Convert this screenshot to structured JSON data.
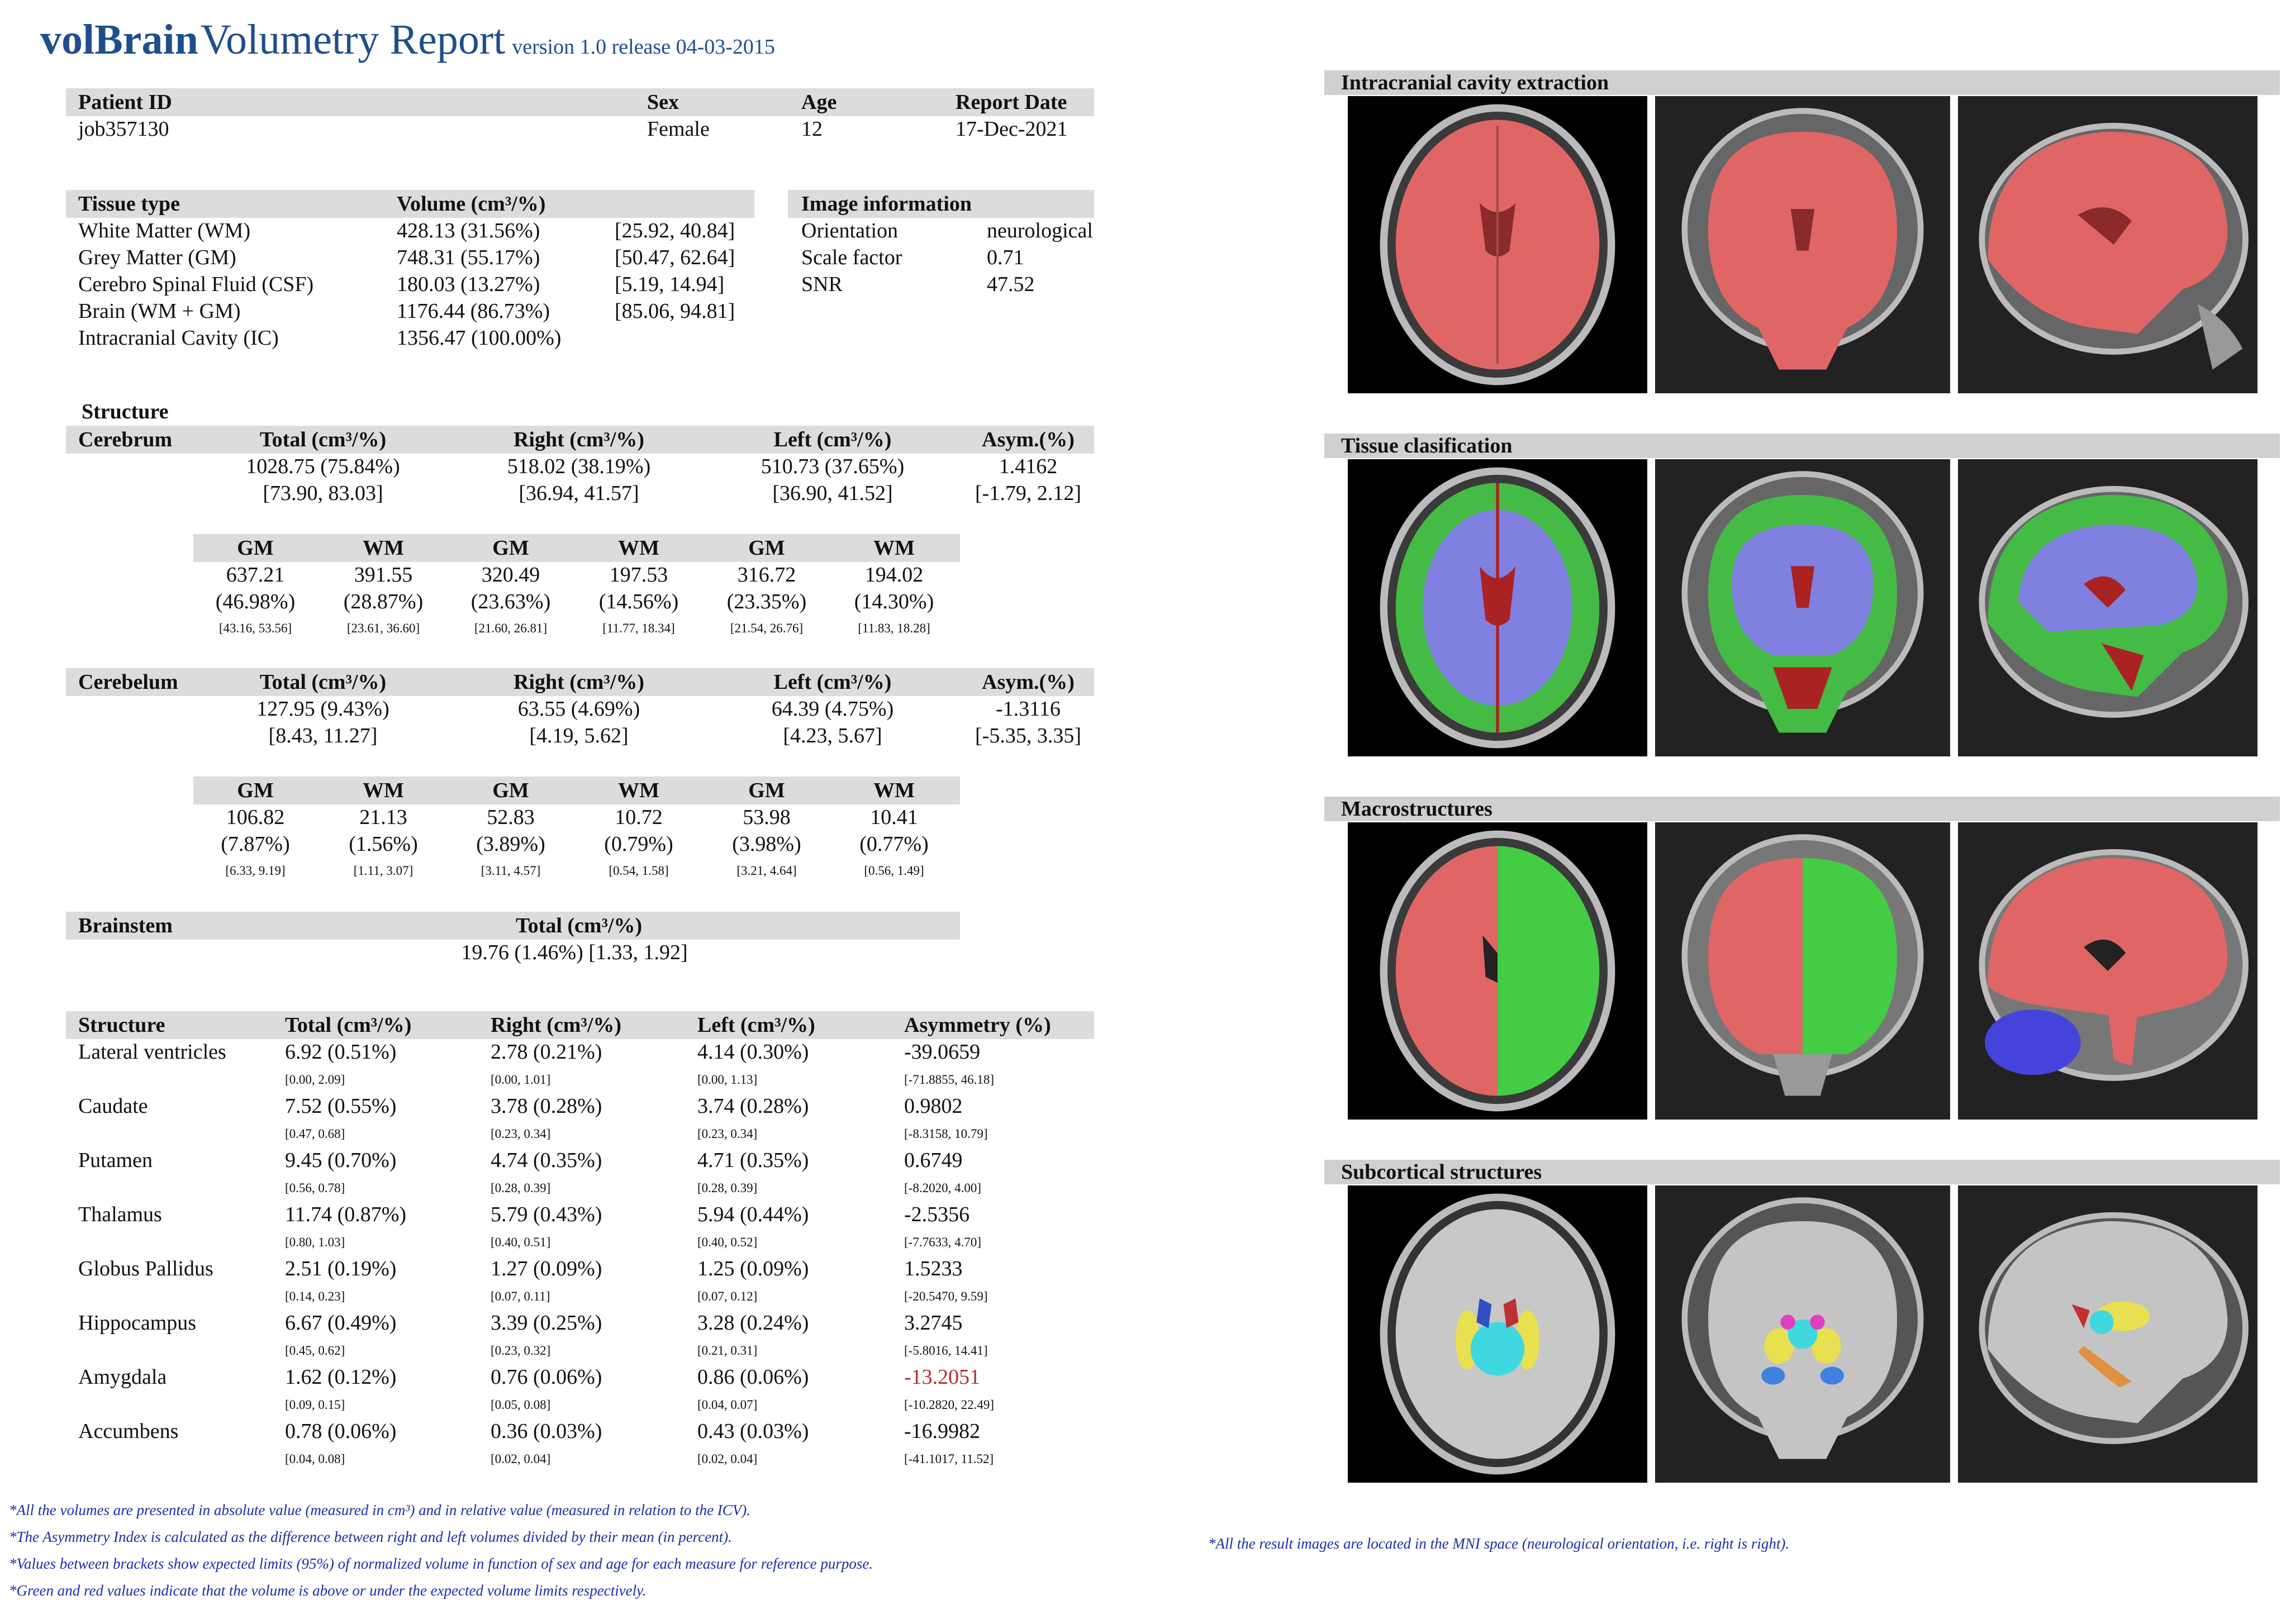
{
  "title": {
    "brand": "volBrain",
    "rest": "Volumetry Report",
    "version": "version 1.0 release 04-03-2015"
  },
  "patient": {
    "headers": [
      "Patient ID",
      "Sex",
      "Age",
      "Report Date"
    ],
    "values": [
      "job357130",
      "Female",
      "12",
      "17-Dec-2021"
    ]
  },
  "tissue": {
    "header_type": "Tissue type",
    "header_volume": "Volume (cm³/%)",
    "rows": [
      {
        "name": "White Matter (WM)",
        "value": "428.13 (31.56%)",
        "range": "[25.92, 40.84]"
      },
      {
        "name": "Grey Matter (GM)",
        "value": "748.31 (55.17%)",
        "range": "[50.47, 62.64]"
      },
      {
        "name": "Cerebro Spinal Fluid (CSF)",
        "value": "180.03 (13.27%)",
        "range": "[5.19, 14.94]"
      },
      {
        "name": "Brain (WM + GM)",
        "value": "1176.44 (86.73%)",
        "range": "[85.06, 94.81]"
      },
      {
        "name": "Intracranial Cavity (IC)",
        "value": "1356.47 (100.00%)",
        "range": ""
      }
    ]
  },
  "image_info": {
    "header": "Image information",
    "rows": [
      {
        "label": "Orientation",
        "value": "neurological"
      },
      {
        "label": "Scale factor",
        "value": "0.71"
      },
      {
        "label": "SNR",
        "value": "47.52"
      }
    ]
  },
  "structure_label": "Structure",
  "col_headers": {
    "total": "Total (cm³/%)",
    "right": "Right (cm³/%)",
    "left": "Left (cm³/%)",
    "asym": "Asym.(%)"
  },
  "cerebrum": {
    "name": "Cerebrum",
    "total": "1028.75 (75.84%)",
    "total_range": "[73.90, 83.03]",
    "right": "518.02 (38.19%)",
    "right_range": "[36.94, 41.57]",
    "left": "510.73 (37.65%)",
    "left_range": "[36.90, 41.52]",
    "asym": "1.4162",
    "asym_range": "[-1.79, 2.12]",
    "sub": [
      {
        "h": "GM",
        "v": "637.21",
        "p": "(46.98%)",
        "r": "[43.16, 53.56]"
      },
      {
        "h": "WM",
        "v": "391.55",
        "p": "(28.87%)",
        "r": "[23.61, 36.60]"
      },
      {
        "h": "GM",
        "v": "320.49",
        "p": "(23.63%)",
        "r": "[21.60, 26.81]"
      },
      {
        "h": "WM",
        "v": "197.53",
        "p": "(14.56%)",
        "r": "[11.77, 18.34]"
      },
      {
        "h": "GM",
        "v": "316.72",
        "p": "(23.35%)",
        "r": "[21.54, 26.76]"
      },
      {
        "h": "WM",
        "v": "194.02",
        "p": "(14.30%)",
        "r": "[11.83, 18.28]"
      }
    ]
  },
  "cerebelum": {
    "name": "Cerebelum",
    "total": "127.95 (9.43%)",
    "total_range": "[8.43, 11.27]",
    "right": "63.55 (4.69%)",
    "right_range": "[4.19, 5.62]",
    "left": "64.39 (4.75%)",
    "left_range": "[4.23, 5.67]",
    "asym": "-1.3116",
    "asym_range": "[-5.35, 3.35]",
    "sub": [
      {
        "h": "GM",
        "v": "106.82",
        "p": "(7.87%)",
        "r": "[6.33, 9.19]"
      },
      {
        "h": "WM",
        "v": "21.13",
        "p": "(1.56%)",
        "r": "[1.11, 3.07]"
      },
      {
        "h": "GM",
        "v": "52.83",
        "p": "(3.89%)",
        "r": "[3.11, 4.57]"
      },
      {
        "h": "WM",
        "v": "10.72",
        "p": "(0.79%)",
        "r": "[0.54, 1.58]"
      },
      {
        "h": "GM",
        "v": "53.98",
        "p": "(3.98%)",
        "r": "[3.21, 4.64]"
      },
      {
        "h": "WM",
        "v": "10.41",
        "p": "(0.77%)",
        "r": "[0.56, 1.49]"
      }
    ]
  },
  "brainstem": {
    "name": "Brainstem",
    "header": "Total (cm³/%)",
    "value": "19.76 (1.46%) [1.33, 1.92]"
  },
  "subcortical": {
    "headers": [
      "Structure",
      "Total (cm³/%)",
      "Right (cm³/%)",
      "Left (cm³/%)",
      "Asymmetry (%)"
    ],
    "rows": [
      {
        "name": "Lateral ventricles",
        "total": "6.92 (0.51%)",
        "tr": "[0.00, 2.09]",
        "right": "2.78 (0.21%)",
        "rr": "[0.00, 1.01]",
        "left": "4.14 (0.30%)",
        "lr": "[0.00, 1.13]",
        "asym": "-39.0659",
        "ar": "[-71.8855, 46.18]"
      },
      {
        "name": "Caudate",
        "total": "7.52 (0.55%)",
        "tr": "[0.47, 0.68]",
        "right": "3.78 (0.28%)",
        "rr": "[0.23, 0.34]",
        "left": "3.74 (0.28%)",
        "lr": "[0.23, 0.34]",
        "asym": "0.9802",
        "ar": "[-8.3158, 10.79]"
      },
      {
        "name": "Putamen",
        "total": "9.45 (0.70%)",
        "tr": "[0.56, 0.78]",
        "right": "4.74 (0.35%)",
        "rr": "[0.28, 0.39]",
        "left": "4.71 (0.35%)",
        "lr": "[0.28, 0.39]",
        "asym": "0.6749",
        "ar": "[-8.2020, 4.00]"
      },
      {
        "name": "Thalamus",
        "total": "11.74 (0.87%)",
        "tr": "[0.80, 1.03]",
        "right": "5.79 (0.43%)",
        "rr": "[0.40, 0.51]",
        "left": "5.94 (0.44%)",
        "lr": "[0.40, 0.52]",
        "asym": "-2.5356",
        "ar": "[-7.7633, 4.70]"
      },
      {
        "name": "Globus Pallidus",
        "total": "2.51 (0.19%)",
        "tr": "[0.14, 0.23]",
        "right": "1.27 (0.09%)",
        "rr": "[0.07, 0.11]",
        "left": "1.25 (0.09%)",
        "lr": "[0.07, 0.12]",
        "asym": "1.5233",
        "ar": "[-20.5470, 9.59]"
      },
      {
        "name": "Hippocampus",
        "total": "6.67 (0.49%)",
        "tr": "[0.45, 0.62]",
        "right": "3.39 (0.25%)",
        "rr": "[0.23, 0.32]",
        "left": "3.28 (0.24%)",
        "lr": "[0.21, 0.31]",
        "asym": "3.2745",
        "ar": "[-5.8016, 14.41]"
      },
      {
        "name": "Amygdala",
        "total": "1.62 (0.12%)",
        "tr": "[0.09, 0.15]",
        "right": "0.76 (0.06%)",
        "rr": "[0.05, 0.08]",
        "left": "0.86 (0.06%)",
        "lr": "[0.04, 0.07]",
        "asym": "-13.2051",
        "ar": "[-10.2820, 22.49]"
      },
      {
        "name": "Accumbens",
        "total": "0.78 (0.06%)",
        "tr": "[0.04, 0.08]",
        "right": "0.36 (0.03%)",
        "rr": "[0.02, 0.04]",
        "left": "0.43 (0.03%)",
        "lr": "[0.02, 0.04]",
        "asym": "-16.9982",
        "ar": "[-41.1017, 11.52]"
      }
    ]
  },
  "notes": [
    "*All the volumes are presented in absolute value (measured in cm³) and in relative value (measured in relation to the ICV).",
    "*The Asymmetry Index is calculated as the difference between right and left volumes divided by their mean (in percent).",
    "*Values between brackets show expected limits (95%) of normalized volume in function of sex and age for each measure for reference purpose.",
    "*Green and red values indicate that the volume is above or under the expected volume limits respectively."
  ],
  "mni_note": "*All the result images are located in the MNI space (neurological orientation, i.e. right is right).",
  "panels": [
    "Intracranial cavity extraction",
    "Tissue clasification",
    "Macrostructures",
    "Subcortical structures"
  ],
  "colors": {
    "title": "#1f4e8c",
    "note": "#1a2ea8",
    "out_of_range": "#b03030",
    "ic": "#e06666",
    "wm": "#8080e0",
    "gm": "#44bb44",
    "csf": "#aa2222"
  }
}
